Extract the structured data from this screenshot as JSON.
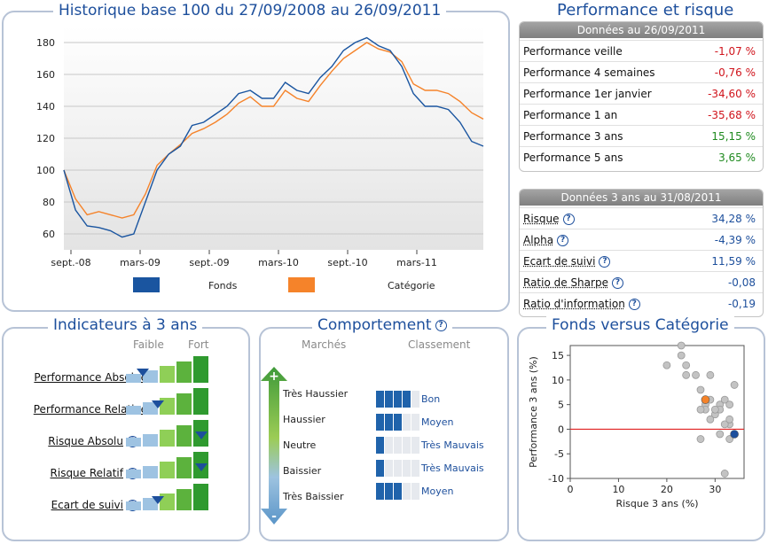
{
  "historique": {
    "title": "Historique base 100 du 27/09/2008 au 26/09/2011",
    "legend": [
      {
        "name": "Fonds",
        "color": "#1a55a0"
      },
      {
        "name": "Catégorie",
        "color": "#f5832a"
      }
    ],
    "x_ticks": [
      "sept.-08",
      "mars-09",
      "sept.-09",
      "mars-10",
      "sept.-10",
      "mars-11"
    ],
    "y_ticks": [
      "60",
      "80",
      "100",
      "120",
      "140",
      "160",
      "180"
    ]
  },
  "performance": {
    "title": "Performance et risque",
    "header": "Données au 26/09/2011",
    "rows": [
      {
        "label": "Performance veille",
        "value": "-1,07 %",
        "sign": "neg"
      },
      {
        "label": "Performance 4 semaines",
        "value": "-0,76 %",
        "sign": "neg"
      },
      {
        "label": "Performance 1er janvier",
        "value": "-34,60 %",
        "sign": "neg"
      },
      {
        "label": "Performance 1 an",
        "value": "-35,68 %",
        "sign": "neg"
      },
      {
        "label": "Performance 3 ans",
        "value": "15,15 %",
        "sign": "pos"
      },
      {
        "label": "Performance 5 ans",
        "value": "3,65 %",
        "sign": "pos"
      }
    ]
  },
  "risque": {
    "header": "Données 3 ans au 31/08/2011",
    "rows": [
      {
        "label": "Risque",
        "value": "34,28 %"
      },
      {
        "label": "Alpha",
        "value": "-4,39 %"
      },
      {
        "label": "Ecart de suivi",
        "value": "11,59 %"
      },
      {
        "label": "Ratio de Sharpe",
        "value": "-0,08"
      },
      {
        "label": "Ratio d'information",
        "value": "-0,19"
      }
    ]
  },
  "indicateurs": {
    "title": "Indicateurs à 3 ans",
    "faible": "Faible",
    "fort": "Fort",
    "rows": [
      {
        "label": "Performance Absolue",
        "level": 0.15
      },
      {
        "label": "Performance Relative",
        "level": 0.35
      },
      {
        "label": "Risque Absolu",
        "level": 0.95
      },
      {
        "label": "Risque Relatif",
        "level": 0.95
      },
      {
        "label": "Ecart de suivi",
        "level": 0.35
      }
    ]
  },
  "comportement": {
    "title": "Comportement",
    "marches": "Marchés",
    "classement": "Classement",
    "scale": [
      "Très Haussier",
      "Haussier",
      "Neutre",
      "Baissier",
      "Très Baissier"
    ],
    "plus": "+",
    "minus": "-",
    "rows": [
      {
        "filled": 4,
        "label": "Bon"
      },
      {
        "filled": 3,
        "label": "Moyen"
      },
      {
        "filled": 1,
        "label": "Très Mauvais"
      },
      {
        "filled": 1,
        "label": "Très Mauvais"
      },
      {
        "filled": 3,
        "label": "Moyen"
      }
    ]
  },
  "chart_data": [
    {
      "type": "line",
      "title": "Historique base 100 du 27/09/2008 au 26/09/2011",
      "x": [
        "2008-09",
        "2008-10",
        "2008-11",
        "2008-12",
        "2009-01",
        "2009-02",
        "2009-03",
        "2009-04",
        "2009-05",
        "2009-06",
        "2009-07",
        "2009-08",
        "2009-09",
        "2009-10",
        "2009-11",
        "2009-12",
        "2010-01",
        "2010-02",
        "2010-03",
        "2010-04",
        "2010-05",
        "2010-06",
        "2010-07",
        "2010-08",
        "2010-09",
        "2010-10",
        "2010-11",
        "2010-12",
        "2011-01",
        "2011-02",
        "2011-03",
        "2011-04",
        "2011-05",
        "2011-06",
        "2011-07",
        "2011-08",
        "2011-09"
      ],
      "series": [
        {
          "name": "Fonds",
          "color": "#1a55a0",
          "values": [
            100,
            75,
            65,
            64,
            62,
            58,
            60,
            80,
            100,
            110,
            115,
            128,
            130,
            135,
            140,
            148,
            150,
            145,
            145,
            155,
            150,
            148,
            158,
            165,
            175,
            180,
            183,
            178,
            175,
            165,
            148,
            140,
            140,
            138,
            130,
            118,
            115
          ]
        },
        {
          "name": "Catégorie",
          "color": "#f5832a",
          "values": [
            100,
            82,
            72,
            74,
            72,
            70,
            72,
            85,
            103,
            110,
            116,
            123,
            126,
            130,
            135,
            142,
            146,
            140,
            140,
            150,
            145,
            143,
            153,
            162,
            170,
            175,
            180,
            176,
            174,
            168,
            154,
            150,
            150,
            148,
            143,
            136,
            132
          ]
        }
      ],
      "ylim": [
        50,
        190
      ],
      "legend": "bottom"
    },
    {
      "type": "scatter",
      "title": "Fonds versus Catégorie",
      "xlabel": "Risque 3 ans (%)",
      "ylabel": "Performance 3 ans (%)",
      "x_ticks": [
        "0",
        "10",
        "20",
        "30"
      ],
      "y_ticks": [
        "15",
        "10",
        "5",
        "0",
        "-5",
        "-10"
      ],
      "xlim": [
        0,
        36
      ],
      "ylim": [
        -10,
        17
      ],
      "reference_line": {
        "y": 0,
        "color": "#e02020"
      },
      "points": [
        {
          "x": 23,
          "y": 17
        },
        {
          "x": 20,
          "y": 13
        },
        {
          "x": 23,
          "y": 15
        },
        {
          "x": 24,
          "y": 13
        },
        {
          "x": 24,
          "y": 11
        },
        {
          "x": 26,
          "y": 11
        },
        {
          "x": 29,
          "y": 11
        },
        {
          "x": 34,
          "y": 9
        },
        {
          "x": 27,
          "y": 8
        },
        {
          "x": 29,
          "y": 6
        },
        {
          "x": 28,
          "y": 5
        },
        {
          "x": 28,
          "y": 4
        },
        {
          "x": 30,
          "y": 3
        },
        {
          "x": 31,
          "y": 5
        },
        {
          "x": 31,
          "y": 4
        },
        {
          "x": 32,
          "y": 6
        },
        {
          "x": 33,
          "y": 5
        },
        {
          "x": 33,
          "y": 1
        },
        {
          "x": 32,
          "y": 1
        },
        {
          "x": 29,
          "y": 2
        },
        {
          "x": 30,
          "y": 4
        },
        {
          "x": 27,
          "y": 4
        },
        {
          "x": 33,
          "y": 2
        },
        {
          "x": 27,
          "y": -2
        },
        {
          "x": 31,
          "y": -1
        },
        {
          "x": 33,
          "y": -2
        },
        {
          "x": 32,
          "y": -9
        }
      ],
      "highlights": [
        {
          "name": "Catégorie",
          "x": 28,
          "y": 6,
          "color": "#f5832a"
        },
        {
          "name": "Fonds",
          "x": 34,
          "y": -1,
          "color": "#1d4f9c"
        }
      ]
    }
  ]
}
